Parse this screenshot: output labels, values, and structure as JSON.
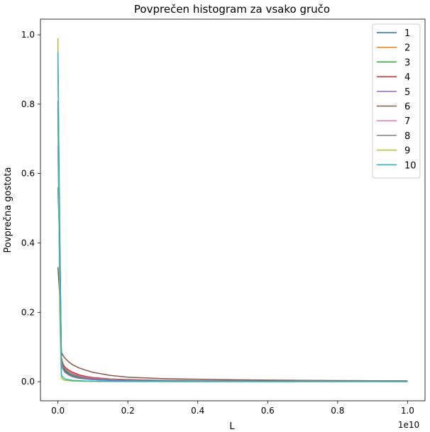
{
  "chart_data": {
    "type": "line",
    "title": "Povprečen histogram za vsako gručo",
    "xlabel": "L",
    "ylabel": "Povprečna gostota",
    "x_offset_label": "1e10",
    "xlim": [
      -0.05,
      1.05
    ],
    "ylim": [
      -0.055,
      1.045
    ],
    "x_scale_note": "x values in units of 1e10",
    "xticks": [
      0.0,
      0.2,
      0.4,
      0.6,
      0.8,
      1.0
    ],
    "xtick_labels": [
      "0.0",
      "0.2",
      "0.4",
      "0.6",
      "0.8",
      "1.0"
    ],
    "yticks": [
      0.0,
      0.2,
      0.4,
      0.6,
      0.8,
      1.0
    ],
    "ytick_labels": [
      "0.0",
      "0.2",
      "0.4",
      "0.6",
      "0.8",
      "1.0"
    ],
    "grid": false,
    "legend_position": "top-right",
    "x": [
      0.0,
      0.005,
      0.01,
      0.015,
      0.02,
      0.03,
      0.04,
      0.06,
      0.08,
      0.1,
      0.15,
      0.2,
      0.3,
      0.4,
      0.5,
      0.6,
      0.7,
      0.8,
      0.9,
      1.0
    ],
    "series": [
      {
        "name": "1",
        "color": "#1f77b4",
        "values": [
          0.93,
          0.45,
          0.06,
          0.04,
          0.03,
          0.02,
          0.015,
          0.01,
          0.008,
          0.006,
          0.004,
          0.003,
          0.002,
          0.0015,
          0.001,
          0.001,
          0.0008,
          0.0007,
          0.0006,
          0.0005
        ]
      },
      {
        "name": "2",
        "color": "#ff7f0e",
        "values": [
          0.78,
          0.35,
          0.07,
          0.05,
          0.04,
          0.03,
          0.024,
          0.017,
          0.013,
          0.01,
          0.007,
          0.005,
          0.0035,
          0.0025,
          0.002,
          0.0015,
          0.0012,
          0.001,
          0.0009,
          0.0008
        ]
      },
      {
        "name": "3",
        "color": "#2ca02c",
        "values": [
          0.56,
          0.4,
          0.06,
          0.04,
          0.032,
          0.024,
          0.018,
          0.013,
          0.01,
          0.008,
          0.005,
          0.004,
          0.003,
          0.002,
          0.0015,
          0.0012,
          0.001,
          0.0009,
          0.0008,
          0.0007
        ]
      },
      {
        "name": "4",
        "color": "#d62728",
        "values": [
          0.79,
          0.3,
          0.06,
          0.05,
          0.042,
          0.034,
          0.028,
          0.02,
          0.015,
          0.012,
          0.008,
          0.006,
          0.004,
          0.003,
          0.0025,
          0.002,
          0.0017,
          0.0015,
          0.0013,
          0.0012
        ]
      },
      {
        "name": "5",
        "color": "#9467bd",
        "values": [
          0.68,
          0.42,
          0.05,
          0.035,
          0.027,
          0.02,
          0.015,
          0.01,
          0.008,
          0.006,
          0.004,
          0.003,
          0.002,
          0.0015,
          0.0012,
          0.001,
          0.0009,
          0.0008,
          0.0007,
          0.0006
        ]
      },
      {
        "name": "6",
        "color": "#8c564b",
        "values": [
          0.33,
          0.25,
          0.085,
          0.075,
          0.068,
          0.058,
          0.05,
          0.04,
          0.033,
          0.027,
          0.018,
          0.013,
          0.009,
          0.007,
          0.0055,
          0.0045,
          0.0038,
          0.0032,
          0.0028,
          0.0025
        ]
      },
      {
        "name": "7",
        "color": "#e377c2",
        "values": [
          0.68,
          0.33,
          0.055,
          0.045,
          0.038,
          0.03,
          0.024,
          0.017,
          0.013,
          0.01,
          0.007,
          0.005,
          0.0035,
          0.0028,
          0.0022,
          0.0018,
          0.0015,
          0.0013,
          0.0011,
          0.001
        ]
      },
      {
        "name": "8",
        "color": "#7f7f7f",
        "values": [
          0.81,
          0.36,
          0.06,
          0.045,
          0.036,
          0.027,
          0.021,
          0.015,
          0.011,
          0.009,
          0.006,
          0.0045,
          0.003,
          0.0023,
          0.0018,
          0.0015,
          0.0012,
          0.001,
          0.0009,
          0.0008
        ]
      },
      {
        "name": "9",
        "color": "#bcbd22",
        "values": [
          0.99,
          0.2,
          0.01,
          0.006,
          0.004,
          0.003,
          0.002,
          0.0015,
          0.001,
          0.0008,
          0.0005,
          0.0004,
          0.0003,
          0.0002,
          0.0002,
          0.0001,
          0.0001,
          0.0001,
          0.0001,
          0.0001
        ]
      },
      {
        "name": "10",
        "color": "#17becf",
        "values": [
          0.95,
          0.33,
          0.02,
          0.012,
          0.008,
          0.006,
          0.004,
          0.003,
          0.002,
          0.0015,
          0.001,
          0.0008,
          0.0006,
          0.0005,
          0.0004,
          0.0003,
          0.0003,
          0.0002,
          0.0002,
          0.0002
        ]
      }
    ]
  }
}
